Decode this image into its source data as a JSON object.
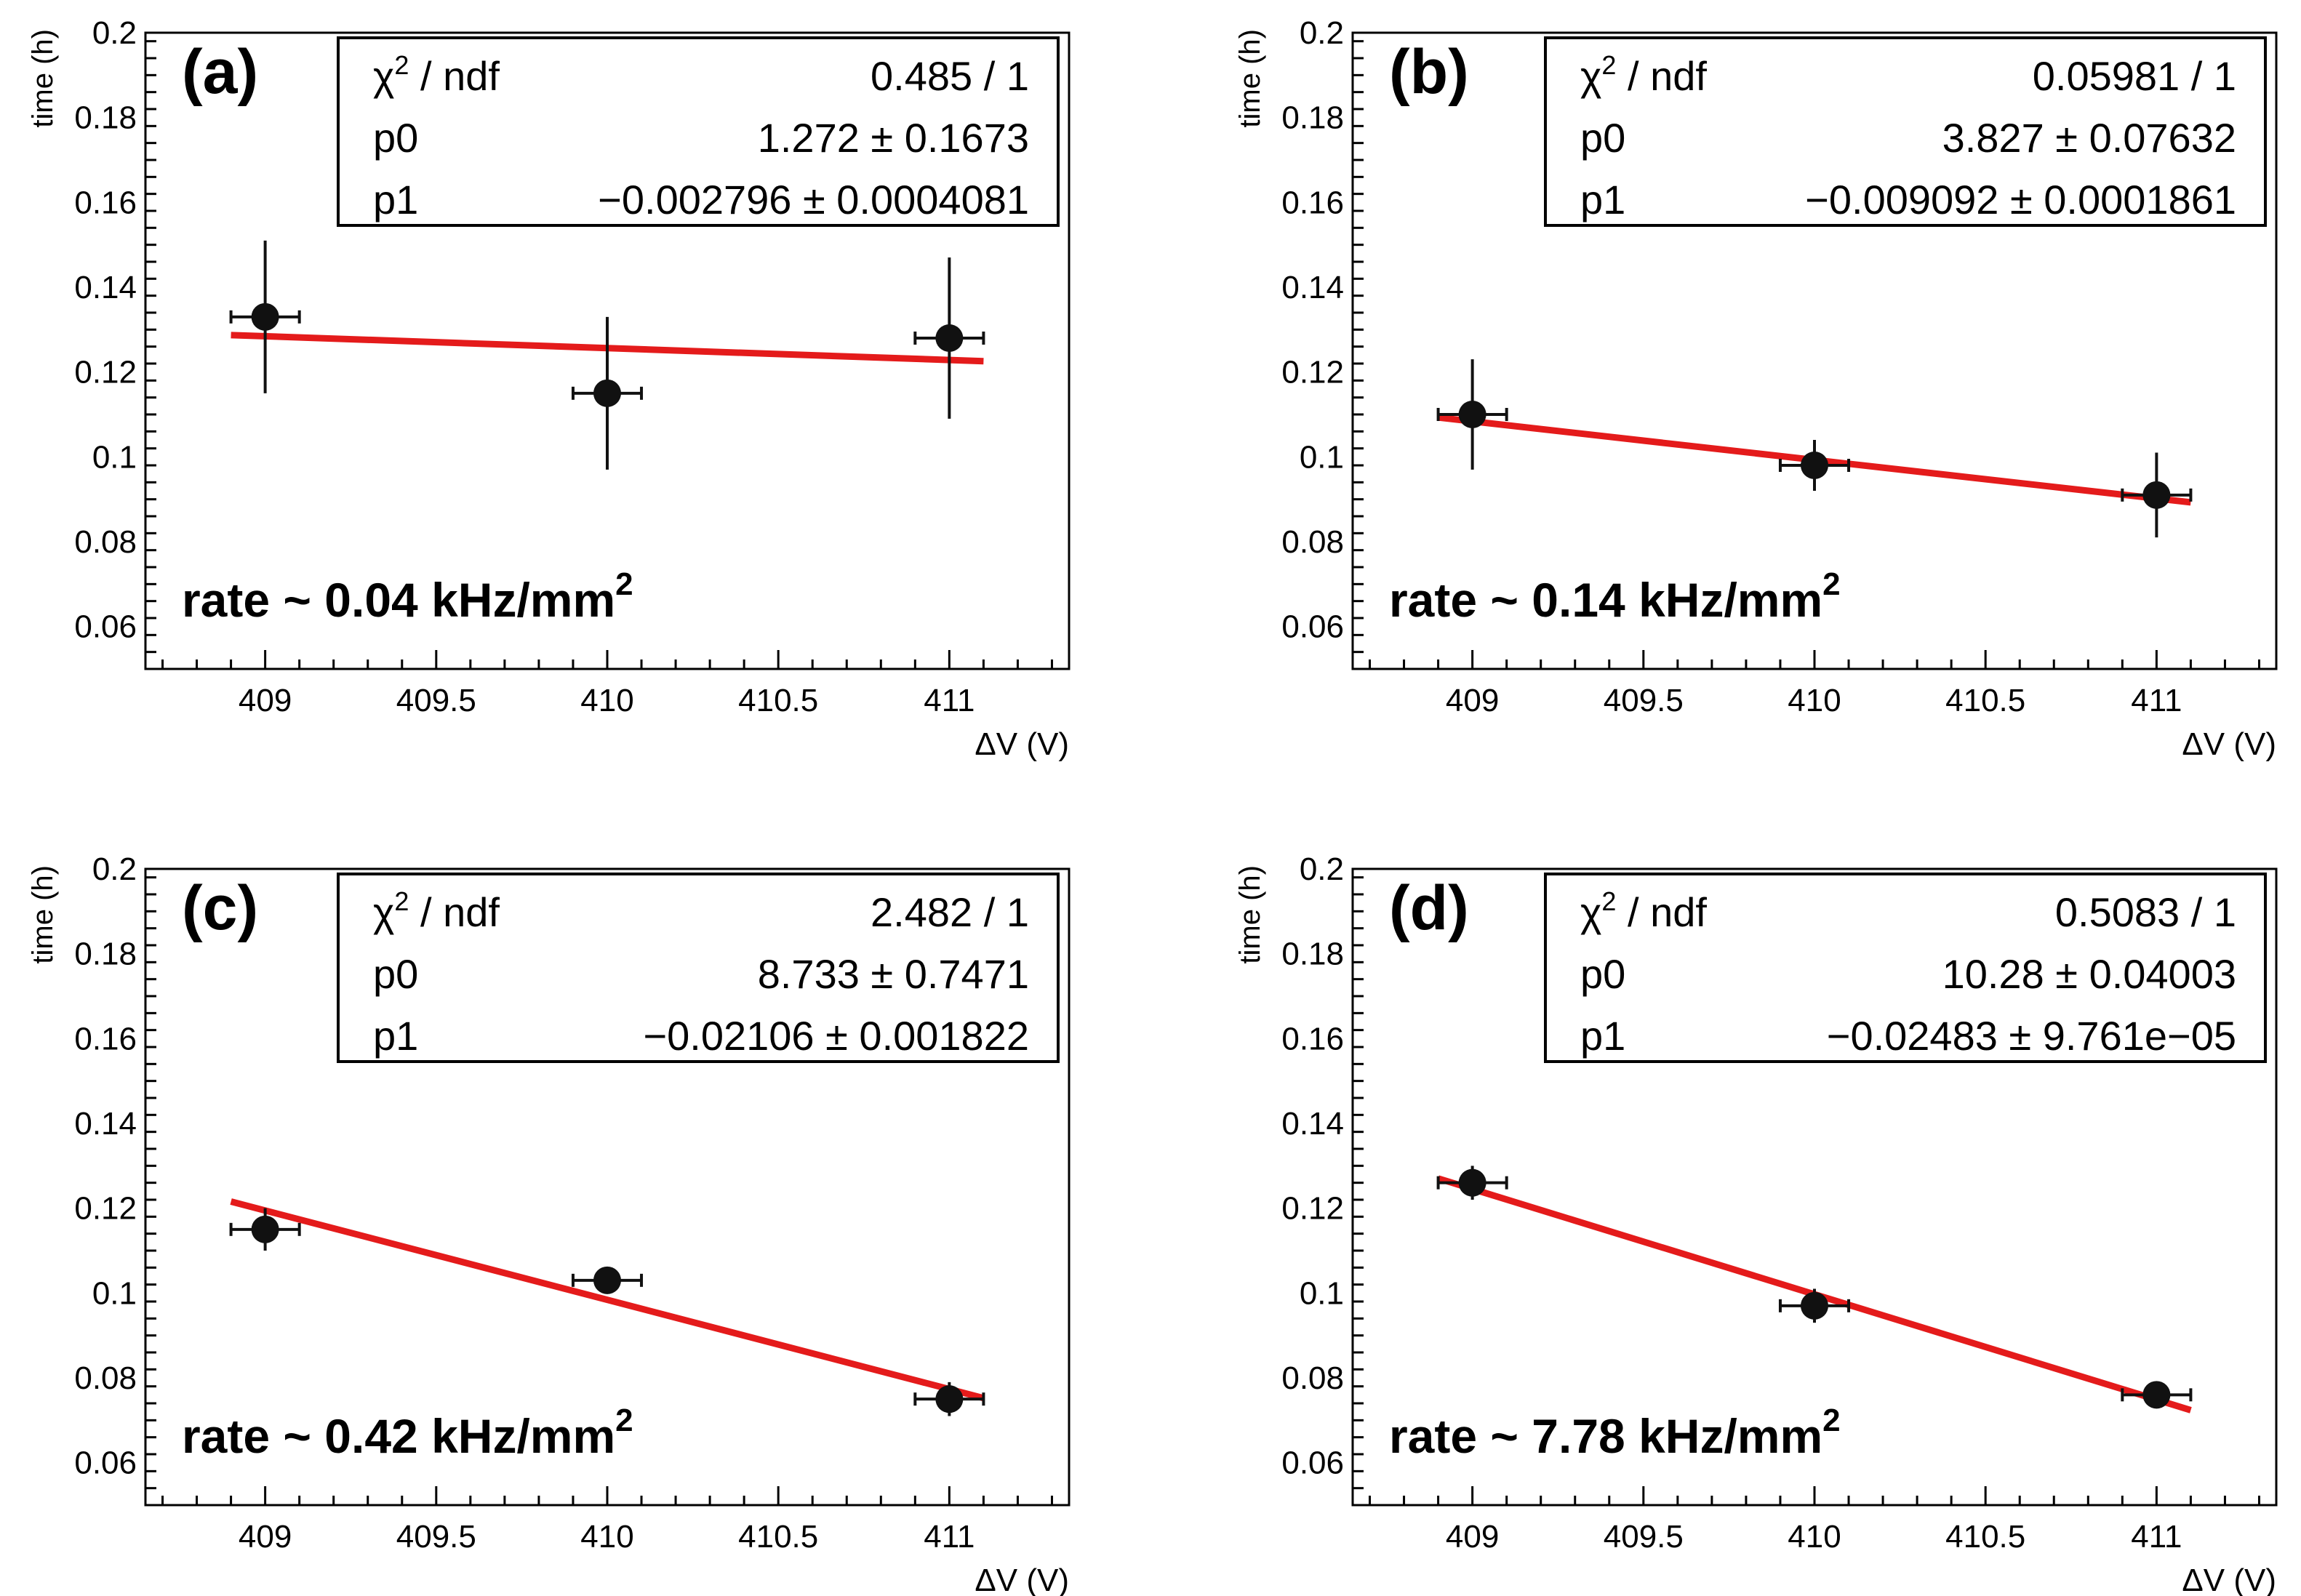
{
  "chart_data": [
    {
      "type": "scatter",
      "panel_label": "(a)",
      "xlabel": "ΔV (V)",
      "ylabel": "time (h)",
      "xlim": [
        408.65,
        411.35
      ],
      "ylim": [
        0.05,
        0.2
      ],
      "xticks": [
        409,
        409.5,
        410,
        410.5,
        411
      ],
      "xtick_labels": [
        "409",
        "409.5",
        "410",
        "410.5",
        "411"
      ],
      "yticks": [
        0.06,
        0.08,
        0.1,
        0.12,
        0.14,
        0.16,
        0.18,
        0.2
      ],
      "ytick_labels": [
        "0.06",
        "0.08",
        "0.1",
        "0.12",
        "0.14",
        "0.16",
        "0.18",
        "0.2"
      ],
      "annotation": {
        "text": "rate ~ 0.04 kHz/mm",
        "sup": "2"
      },
      "stats": [
        {
          "label": "χ",
          "sup": "2",
          "label_rest": " / ndf",
          "value": "0.485 / 1"
        },
        {
          "label": "p0",
          "sup": "",
          "label_rest": "",
          "value": "1.272 ± 0.1673"
        },
        {
          "label": "p1",
          "sup": "",
          "label_rest": "",
          "value": "−0.002796 ± 0.0004081"
        }
      ],
      "points": [
        {
          "x": 409,
          "y": 0.133,
          "xerr": 0.1,
          "yerr": 0.018
        },
        {
          "x": 410,
          "y": 0.115,
          "xerr": 0.1,
          "yerr": 0.018
        },
        {
          "x": 411,
          "y": 0.128,
          "xerr": 0.1,
          "yerr": 0.019
        }
      ],
      "fit": {
        "p0": 1.272,
        "p1": -0.002796,
        "x_range": [
          408.9,
          411.1
        ]
      }
    },
    {
      "type": "scatter",
      "panel_label": "(b)",
      "xlabel": "ΔV (V)",
      "ylabel": "time (h)",
      "xlim": [
        408.65,
        411.35
      ],
      "ylim": [
        0.05,
        0.2
      ],
      "xticks": [
        409,
        409.5,
        410,
        410.5,
        411
      ],
      "xtick_labels": [
        "409",
        "409.5",
        "410",
        "410.5",
        "411"
      ],
      "yticks": [
        0.06,
        0.08,
        0.1,
        0.12,
        0.14,
        0.16,
        0.18,
        0.2
      ],
      "ytick_labels": [
        "0.06",
        "0.08",
        "0.1",
        "0.12",
        "0.14",
        "0.16",
        "0.18",
        "0.2"
      ],
      "annotation": {
        "text": "rate ~ 0.14 kHz/mm",
        "sup": "2"
      },
      "stats": [
        {
          "label": "χ",
          "sup": "2",
          "label_rest": " / ndf",
          "value": "0.05981 / 1"
        },
        {
          "label": "p0",
          "sup": "",
          "label_rest": "",
          "value": "3.827 ± 0.07632"
        },
        {
          "label": "p1",
          "sup": "",
          "label_rest": "",
          "value": "−0.009092 ± 0.0001861"
        }
      ],
      "points": [
        {
          "x": 409,
          "y": 0.11,
          "xerr": 0.1,
          "yerr": 0.013
        },
        {
          "x": 410,
          "y": 0.098,
          "xerr": 0.1,
          "yerr": 0.006
        },
        {
          "x": 411,
          "y": 0.091,
          "xerr": 0.1,
          "yerr": 0.01
        }
      ],
      "fit": {
        "p0": 3.827,
        "p1": -0.009092,
        "x_range": [
          408.9,
          411.1
        ]
      }
    },
    {
      "type": "scatter",
      "panel_label": "(c)",
      "xlabel": "ΔV (V)",
      "ylabel": "time (h)",
      "xlim": [
        408.65,
        411.35
      ],
      "ylim": [
        0.05,
        0.2
      ],
      "xticks": [
        409,
        409.5,
        410,
        410.5,
        411
      ],
      "xtick_labels": [
        "409",
        "409.5",
        "410",
        "410.5",
        "411"
      ],
      "yticks": [
        0.06,
        0.08,
        0.1,
        0.12,
        0.14,
        0.16,
        0.18,
        0.2
      ],
      "ytick_labels": [
        "0.06",
        "0.08",
        "0.1",
        "0.12",
        "0.14",
        "0.16",
        "0.18",
        "0.2"
      ],
      "annotation": {
        "text": "rate ~ 0.42 kHz/mm",
        "sup": "2"
      },
      "stats": [
        {
          "label": "χ",
          "sup": "2",
          "label_rest": " / ndf",
          "value": "2.482 / 1"
        },
        {
          "label": "p0",
          "sup": "",
          "label_rest": "",
          "value": "8.733 ± 0.7471"
        },
        {
          "label": "p1",
          "sup": "",
          "label_rest": "",
          "value": "−0.02106 ± 0.001822"
        }
      ],
      "points": [
        {
          "x": 409,
          "y": 0.115,
          "xerr": 0.1,
          "yerr": 0.005
        },
        {
          "x": 410,
          "y": 0.103,
          "xerr": 0.1,
          "yerr": 0.002
        },
        {
          "x": 411,
          "y": 0.075,
          "xerr": 0.1,
          "yerr": 0.004
        }
      ],
      "fit": {
        "p0": 8.733,
        "p1": -0.02106,
        "x_range": [
          408.9,
          411.1
        ]
      }
    },
    {
      "type": "scatter",
      "panel_label": "(d)",
      "xlabel": "ΔV (V)",
      "ylabel": "time (h)",
      "xlim": [
        408.65,
        411.35
      ],
      "ylim": [
        0.05,
        0.2
      ],
      "xticks": [
        409,
        409.5,
        410,
        410.5,
        411
      ],
      "xtick_labels": [
        "409",
        "409.5",
        "410",
        "410.5",
        "411"
      ],
      "yticks": [
        0.06,
        0.08,
        0.1,
        0.12,
        0.14,
        0.16,
        0.18,
        0.2
      ],
      "ytick_labels": [
        "0.06",
        "0.08",
        "0.1",
        "0.12",
        "0.14",
        "0.16",
        "0.18",
        "0.2"
      ],
      "annotation": {
        "text": "rate ~ 7.78 kHz/mm",
        "sup": "2"
      },
      "stats": [
        {
          "label": "χ",
          "sup": "2",
          "label_rest": " / ndf",
          "value": "0.5083 / 1"
        },
        {
          "label": "p0",
          "sup": "",
          "label_rest": "",
          "value": "10.28 ± 0.04003"
        },
        {
          "label": "p1",
          "sup": "",
          "label_rest": "",
          "value": "−0.02483 ± 9.761e−05"
        }
      ],
      "points": [
        {
          "x": 409,
          "y": 0.126,
          "xerr": 0.1,
          "yerr": 0.004
        },
        {
          "x": 410,
          "y": 0.097,
          "xerr": 0.1,
          "yerr": 0.004
        },
        {
          "x": 411,
          "y": 0.076,
          "xerr": 0.1,
          "yerr": 0.002
        }
      ],
      "fit": {
        "p0": 10.28,
        "p1": -0.02483,
        "x_range": [
          408.9,
          411.1
        ]
      }
    }
  ],
  "colors": {
    "fit_line": "#e41b1b",
    "marker": "#111111",
    "axis": "#000000",
    "background": "#ffffff"
  }
}
